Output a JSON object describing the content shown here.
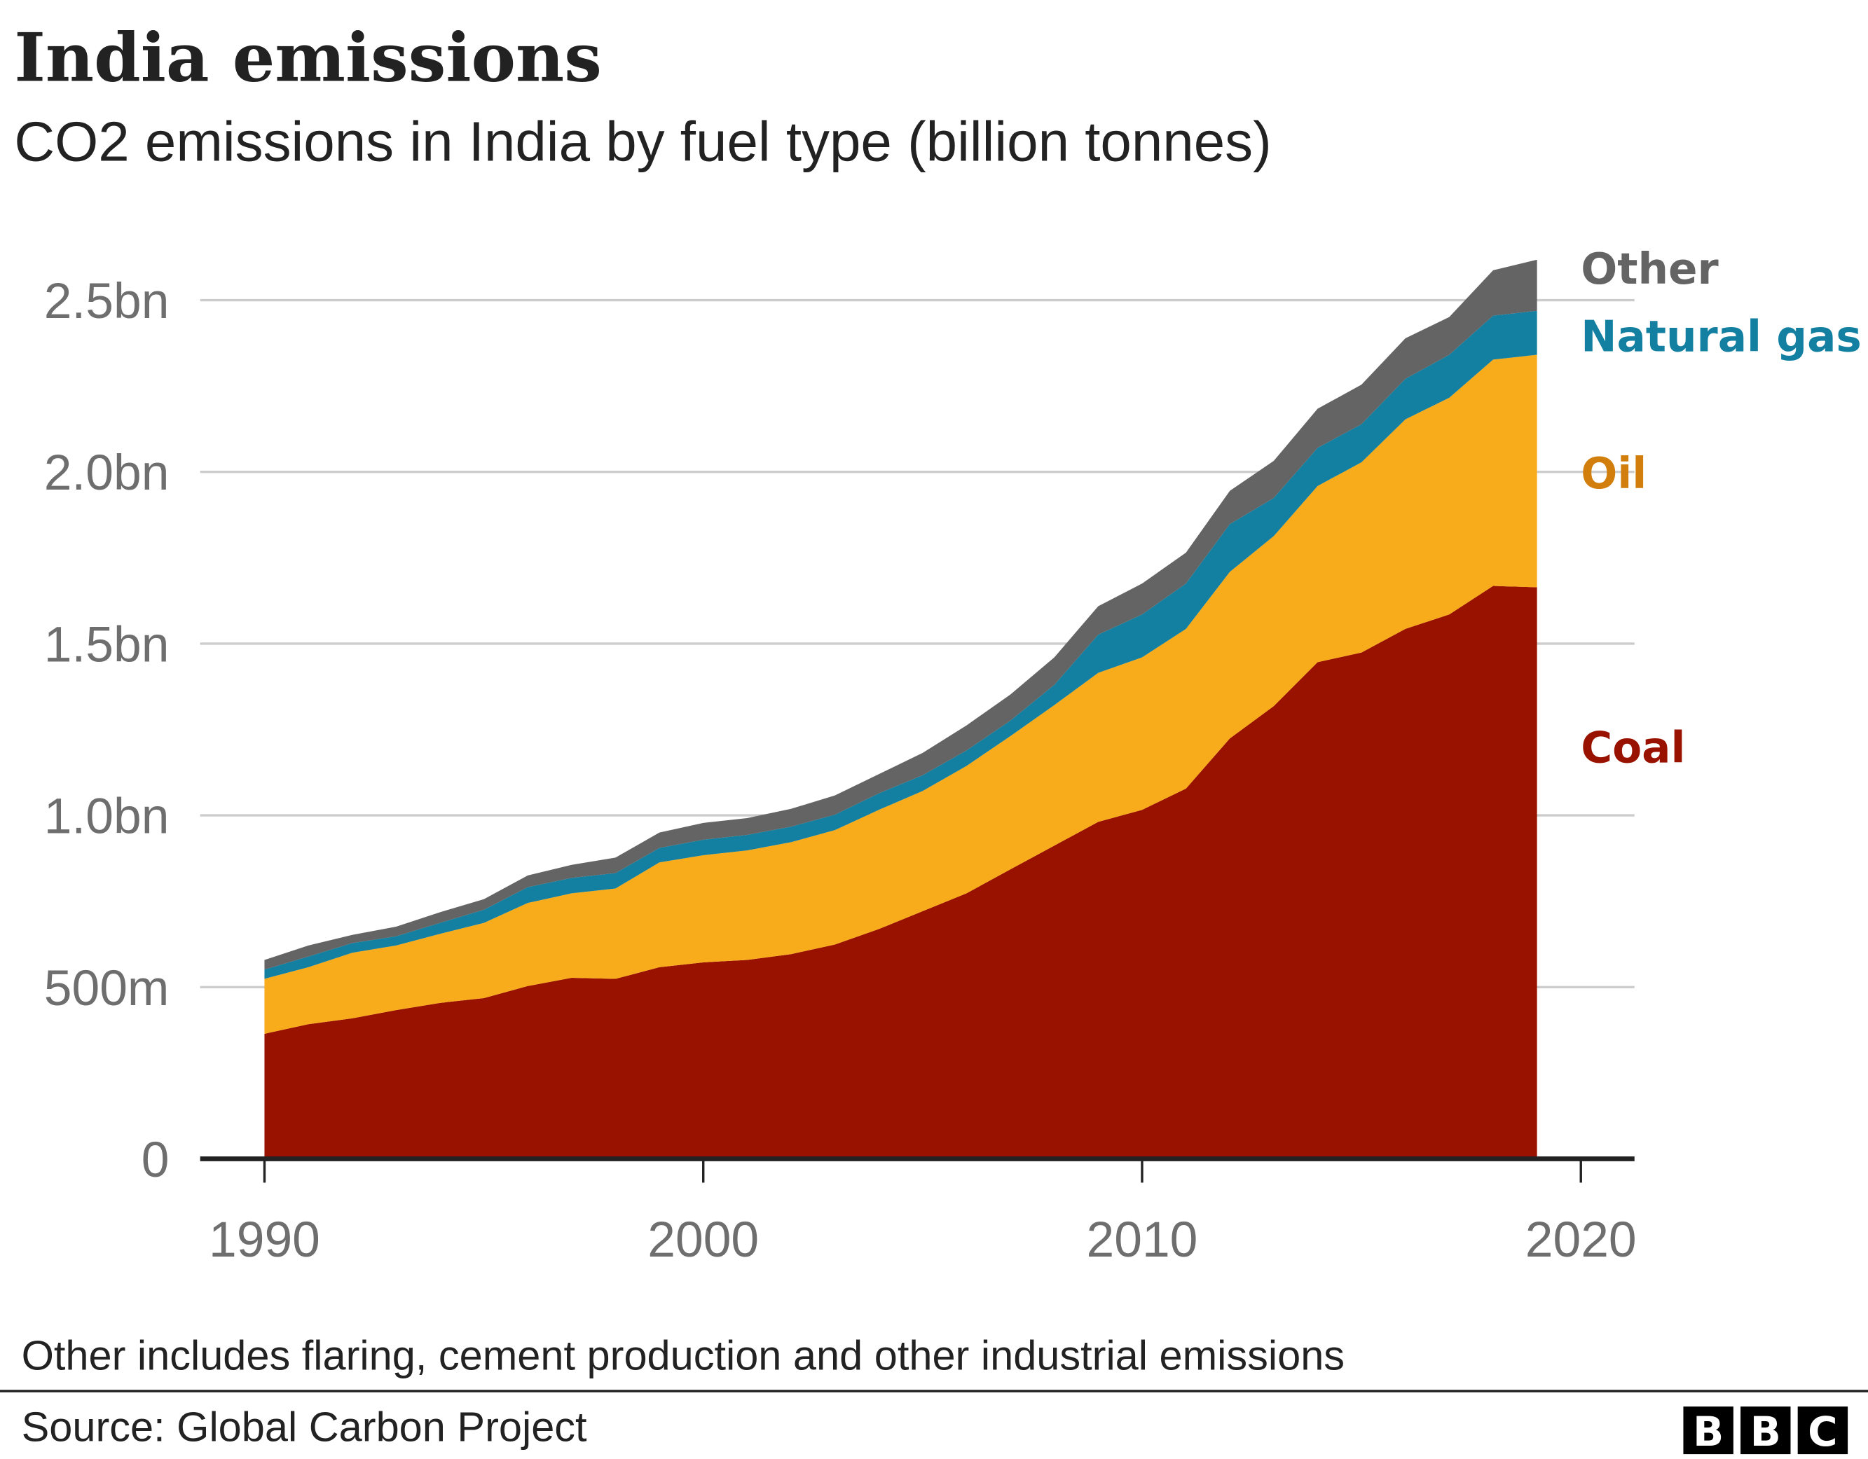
{
  "chart_data": {
    "type": "area",
    "stacked": true,
    "title": "India emissions",
    "subtitle": "CO2 emissions in India by fuel type (billion tonnes)",
    "xlabel": "",
    "ylabel": "",
    "xlim": [
      1990,
      2020
    ],
    "ylim": [
      0,
      2.5
    ],
    "grid": true,
    "legend": "direct labels right",
    "x_ticks": [
      "1990",
      "2000",
      "2010",
      "2020"
    ],
    "x_tick_values": [
      1990,
      2000,
      2010,
      2020
    ],
    "y_ticks": [
      "0",
      "500m",
      "1.0bn",
      "1.5bn",
      "2.0bn",
      "2.5bn"
    ],
    "y_tick_values": [
      0,
      0.5,
      1.0,
      1.5,
      2.0,
      2.5
    ],
    "x": [
      1990,
      1991,
      1992,
      1993,
      1994,
      1995,
      1996,
      1997,
      1998,
      1999,
      2000,
      2001,
      2002,
      2003,
      2004,
      2005,
      2006,
      2007,
      2008,
      2009,
      2010,
      2011,
      2012,
      2013,
      2014,
      2015,
      2016,
      2017,
      2018,
      2019
    ],
    "series": [
      {
        "name": "Coal",
        "color": "#991200",
        "label_color": "#991200",
        "values": [
          0.364,
          0.392,
          0.409,
          0.433,
          0.454,
          0.468,
          0.503,
          0.527,
          0.524,
          0.558,
          0.572,
          0.579,
          0.596,
          0.624,
          0.669,
          0.721,
          0.773,
          0.843,
          0.912,
          0.981,
          1.016,
          1.078,
          1.224,
          1.318,
          1.446,
          1.474,
          1.543,
          1.585,
          1.668,
          1.664
        ]
      },
      {
        "name": "Oil",
        "color": "#f8ac1b",
        "label_color": "#d27e0c",
        "values": [
          0.16,
          0.166,
          0.191,
          0.188,
          0.201,
          0.219,
          0.242,
          0.246,
          0.263,
          0.305,
          0.312,
          0.319,
          0.326,
          0.333,
          0.347,
          0.35,
          0.371,
          0.388,
          0.409,
          0.434,
          0.444,
          0.465,
          0.485,
          0.495,
          0.513,
          0.554,
          0.61,
          0.631,
          0.659,
          0.677
        ]
      },
      {
        "name": "Natural gas",
        "color": "#1380a1",
        "label_color": "#1380a1",
        "values": [
          0.027,
          0.031,
          0.028,
          0.027,
          0.032,
          0.038,
          0.046,
          0.045,
          0.045,
          0.042,
          0.045,
          0.045,
          0.045,
          0.045,
          0.048,
          0.046,
          0.045,
          0.045,
          0.059,
          0.111,
          0.125,
          0.132,
          0.139,
          0.111,
          0.111,
          0.111,
          0.118,
          0.125,
          0.128,
          0.128
        ]
      },
      {
        "name": "Other",
        "color": "#646464",
        "label_color": "#646464",
        "values": [
          0.028,
          0.032,
          0.024,
          0.028,
          0.031,
          0.031,
          0.034,
          0.038,
          0.045,
          0.045,
          0.049,
          0.049,
          0.052,
          0.056,
          0.056,
          0.065,
          0.073,
          0.076,
          0.08,
          0.083,
          0.09,
          0.09,
          0.097,
          0.108,
          0.114,
          0.115,
          0.118,
          0.11,
          0.132,
          0.149
        ]
      }
    ],
    "note": "Other includes flaring, cement production and other industrial emissions",
    "source": "Source: Global Carbon Project"
  },
  "branding": {
    "logo": "BBC",
    "letters": [
      "B",
      "B",
      "C"
    ]
  }
}
